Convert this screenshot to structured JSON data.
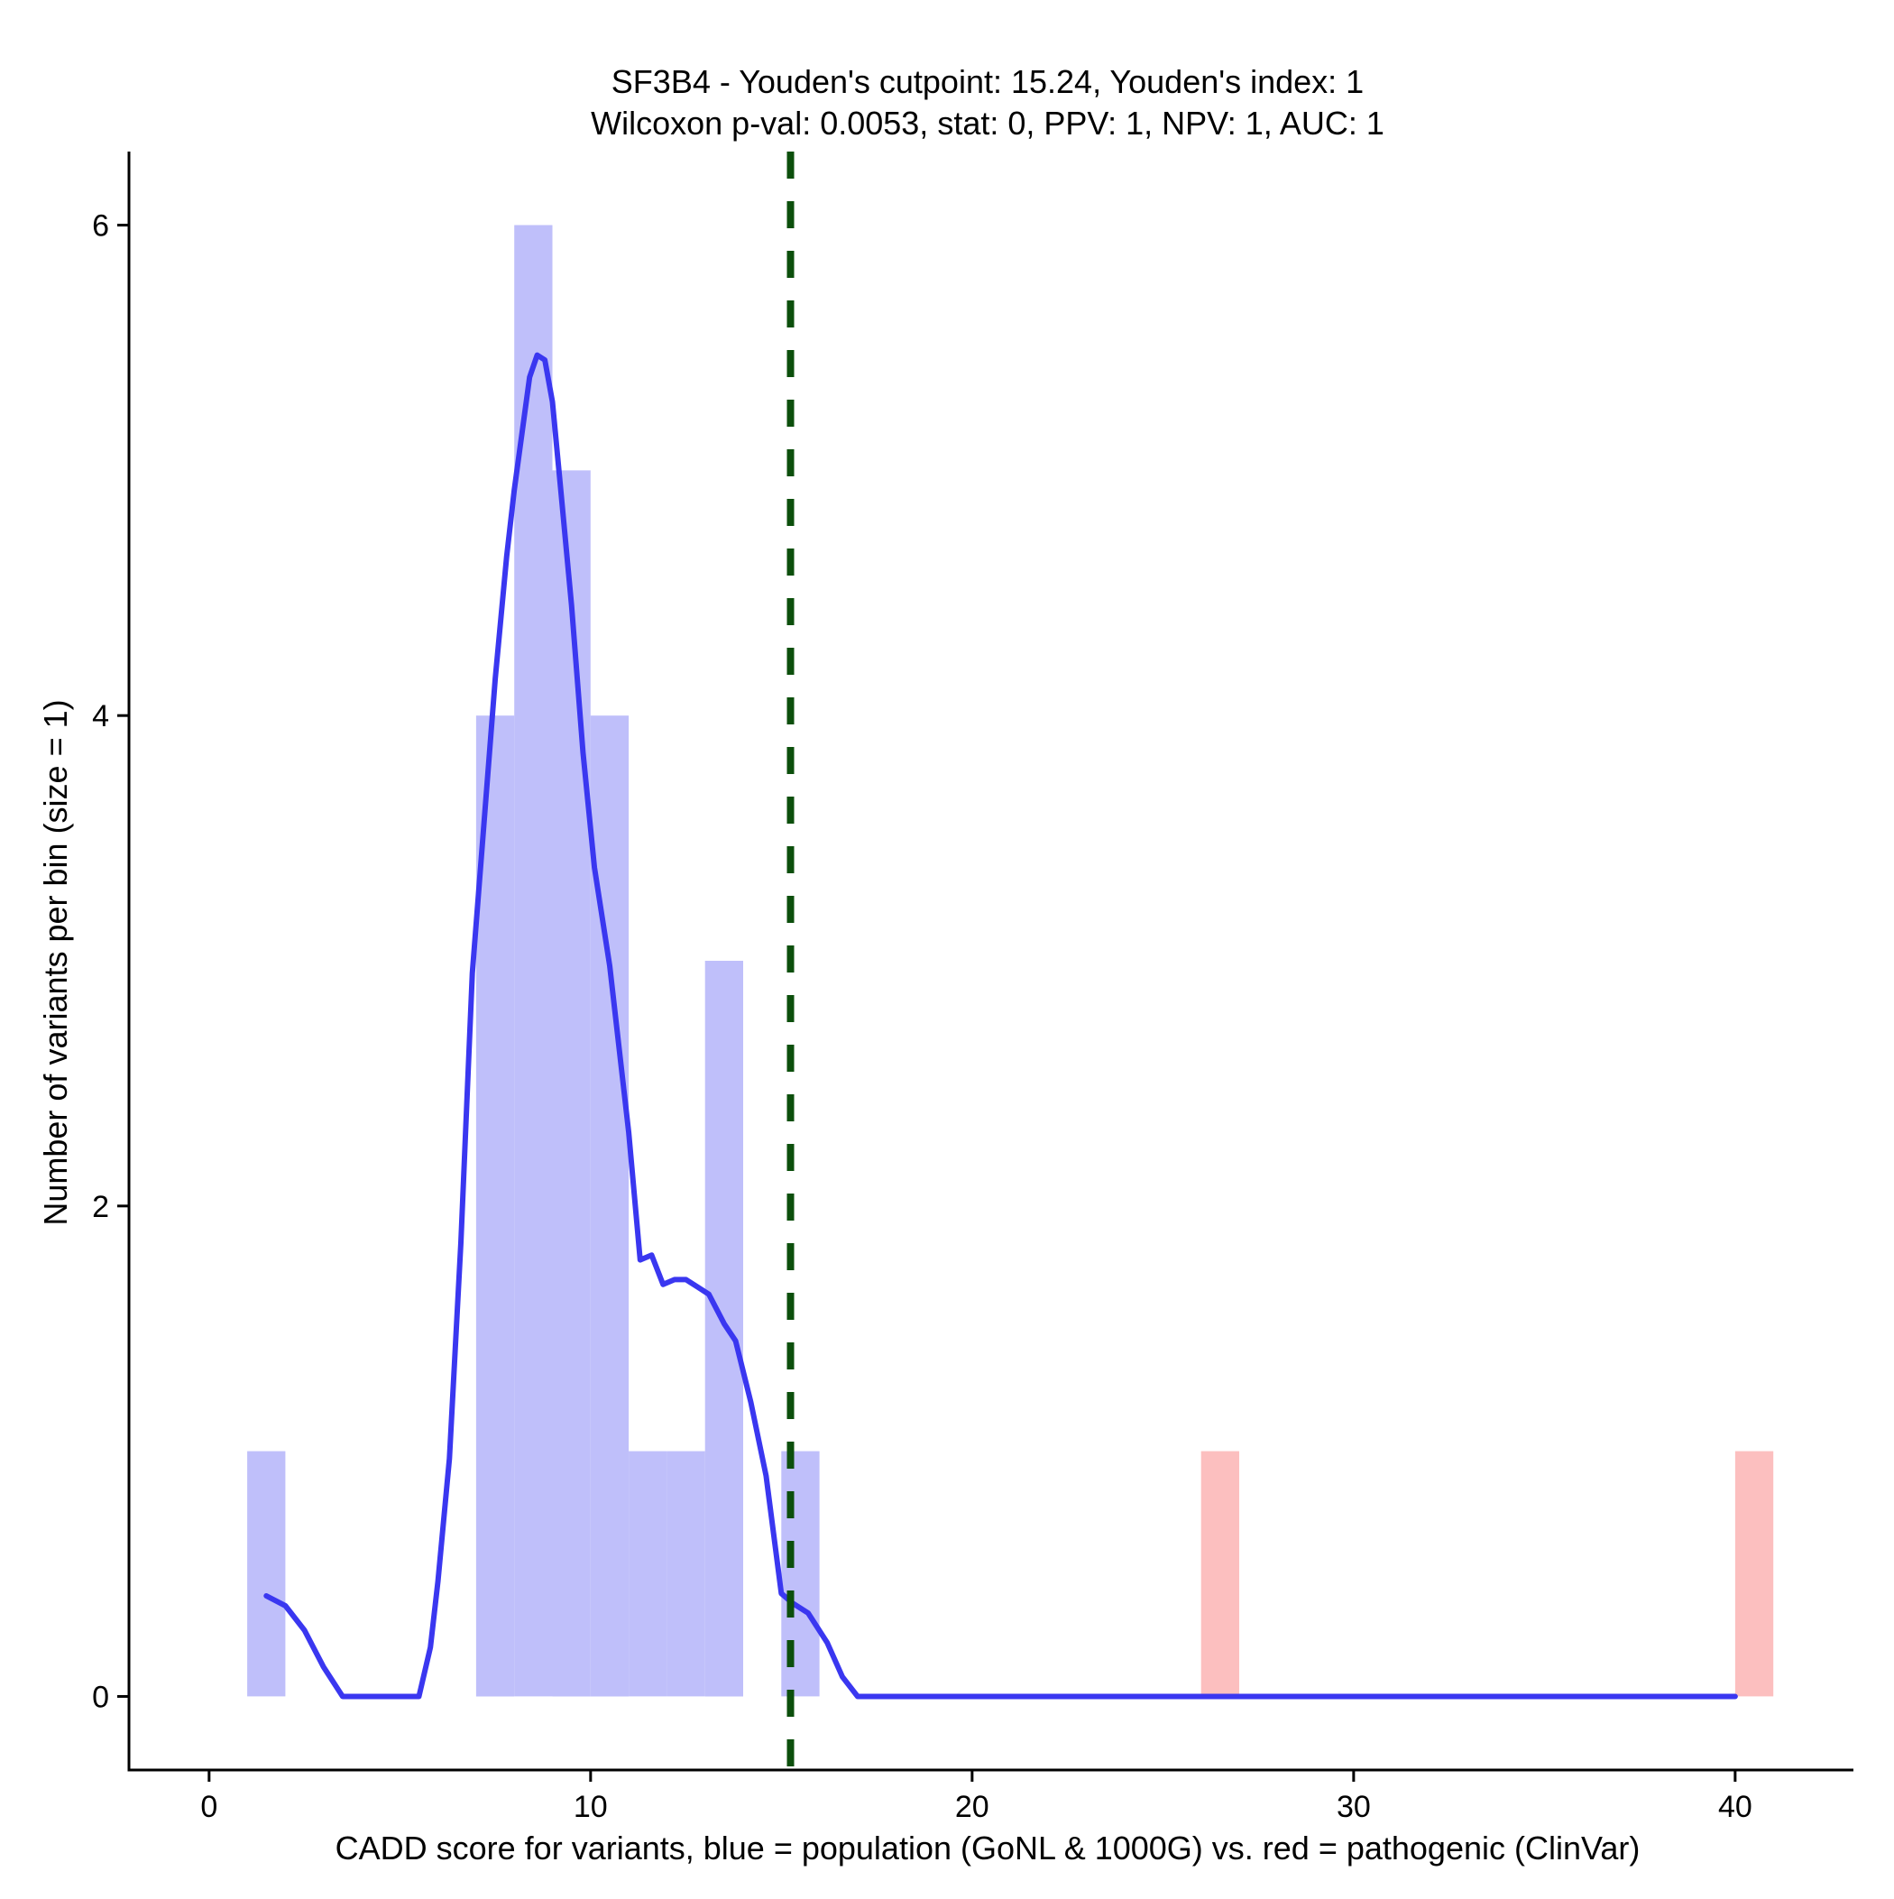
{
  "chart_data": {
    "type": "bar",
    "title": "SF3B4 - Youden's cutpoint: 15.24, Youden's index: 1",
    "subtitle": "Wilcoxon p-val: 0.0053, stat: 0, PPV: 1, NPV: 1, AUC: 1",
    "xlabel": "CADD score for variants, blue = population (GoNL & 1000G) vs. red = pathogenic (ClinVar)",
    "ylabel": "Number of variants per bin (size = 1)",
    "xlim": [
      -2.1,
      43.1
    ],
    "ylim": [
      -0.3,
      6.3
    ],
    "x_ticks": [
      0,
      10,
      20,
      30,
      40
    ],
    "y_ticks": [
      0,
      2,
      4,
      6
    ],
    "grid": false,
    "bin_width": 1,
    "series": [
      {
        "color": "#bfbffa",
        "bins": [
          {
            "x0": 1,
            "x1": 2,
            "count": 1
          },
          {
            "x0": 7,
            "x1": 8,
            "count": 4
          },
          {
            "x0": 8,
            "x1": 9,
            "count": 6
          },
          {
            "x0": 9,
            "x1": 10,
            "count": 5
          },
          {
            "x0": 10,
            "x1": 11,
            "count": 4
          },
          {
            "x0": 11,
            "x1": 12,
            "count": 1
          },
          {
            "x0": 12,
            "x1": 13,
            "count": 1
          },
          {
            "x0": 13,
            "x1": 14,
            "count": 3
          },
          {
            "x0": 15,
            "x1": 16,
            "count": 1
          }
        ]
      },
      {
        "color": "#fcbfbf",
        "bins": [
          {
            "x0": 26,
            "x1": 27,
            "count": 1
          },
          {
            "x0": 40,
            "x1": 41,
            "count": 1
          }
        ]
      }
    ],
    "density_curve": {
      "color": "#3a37f0",
      "points": [
        [
          1.5,
          0.41
        ],
        [
          2.0,
          0.37
        ],
        [
          2.5,
          0.27
        ],
        [
          3.0,
          0.12
        ],
        [
          3.5,
          0.0
        ],
        [
          4.0,
          0.0
        ],
        [
          5.0,
          0.0
        ],
        [
          5.5,
          0.0
        ],
        [
          5.8,
          0.2
        ],
        [
          6.0,
          0.47
        ],
        [
          6.3,
          0.97
        ],
        [
          6.6,
          1.85
        ],
        [
          6.9,
          2.95
        ],
        [
          7.2,
          3.55
        ],
        [
          7.5,
          4.15
        ],
        [
          7.8,
          4.65
        ],
        [
          8.0,
          4.92
        ],
        [
          8.2,
          5.15
        ],
        [
          8.4,
          5.38
        ],
        [
          8.6,
          5.47
        ],
        [
          8.8,
          5.45
        ],
        [
          9.0,
          5.28
        ],
        [
          9.2,
          4.95
        ],
        [
          9.5,
          4.45
        ],
        [
          9.8,
          3.85
        ],
        [
          10.1,
          3.38
        ],
        [
          10.5,
          2.98
        ],
        [
          11.0,
          2.3
        ],
        [
          11.3,
          1.78
        ],
        [
          11.6,
          1.8
        ],
        [
          11.9,
          1.68
        ],
        [
          12.2,
          1.7
        ],
        [
          12.5,
          1.7
        ],
        [
          12.8,
          1.67
        ],
        [
          13.1,
          1.64
        ],
        [
          13.5,
          1.52
        ],
        [
          13.8,
          1.45
        ],
        [
          14.2,
          1.2
        ],
        [
          14.6,
          0.9
        ],
        [
          15.0,
          0.42
        ],
        [
          15.3,
          0.38
        ],
        [
          15.7,
          0.34
        ],
        [
          16.2,
          0.22
        ],
        [
          16.6,
          0.08
        ],
        [
          17.0,
          0.0
        ],
        [
          20.0,
          0.0
        ],
        [
          25.0,
          0.0
        ],
        [
          30.0,
          0.0
        ],
        [
          35.0,
          0.0
        ],
        [
          40.0,
          0.0
        ]
      ]
    },
    "cutpoint": {
      "x": 15.24,
      "color": "#0c4f0c",
      "style": "dashed"
    }
  }
}
